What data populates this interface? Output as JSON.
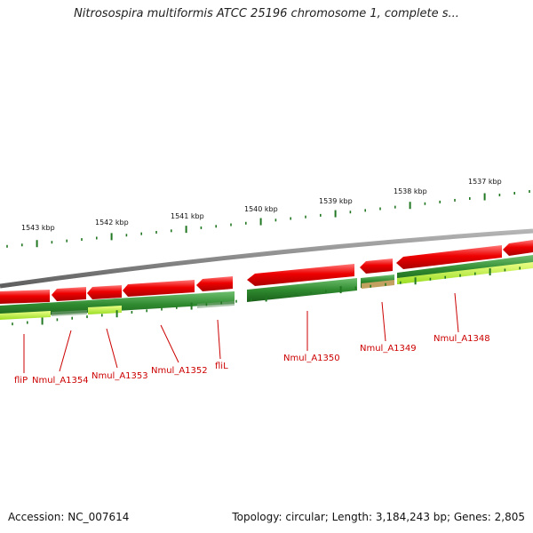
{
  "header": {
    "title": "Nitrosospira multiformis ATCC 25196 chromosome 1, complete s..."
  },
  "footer": {
    "accession": "Accession: NC_007614",
    "topology": "Topology: circular; Length: 3,184,243 bp; Genes: 2,805"
  },
  "scale_labels": [
    "1543 kbp",
    "1542 kbp",
    "1541 kbp",
    "1540 kbp",
    "1539 kbp",
    "1538 kbp",
    "1537 kbp"
  ],
  "gene_labels": [
    "fliP",
    "Nmul_A1354",
    "Nmul_A1353",
    "Nmul_A1352",
    "fliL",
    "Nmul_A1350",
    "Nmul_A1349",
    "Nmul_A1348"
  ],
  "colors": {
    "gene_red": "#ee0000",
    "gene_green": "#2f8a2f",
    "gene_lightgreen": "#aaee33",
    "backbone": "#888888",
    "tick": "#227722"
  }
}
